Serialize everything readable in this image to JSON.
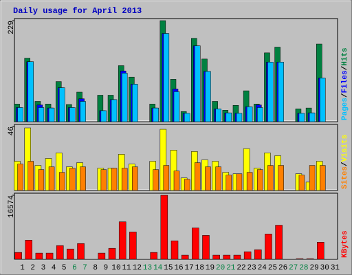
{
  "chart_data": [
    {
      "type": "bar",
      "title": "Daily usage for April 2013",
      "ylim": [
        0,
        229
      ],
      "yticks": [
        229
      ],
      "legend_separator": "/",
      "series": [
        {
          "name": "Hits",
          "color": "#008040",
          "values": [
            40,
            144,
            46,
            40,
            91,
            39,
            67,
            null,
            60,
            60,
            127,
            101,
            null,
            40,
            229,
            96,
            23,
            189,
            142,
            46,
            26,
            37,
            70,
            40,
            156,
            169,
            null,
            29,
            31,
            176,
            null
          ]
        },
        {
          "name": "Files",
          "color": "#0000ff",
          "values": [
            32,
            136,
            38,
            31,
            77,
            32,
            52,
            null,
            25,
            50,
            115,
            85,
            null,
            31,
            200,
            74,
            19,
            172,
            114,
            29,
            20,
            19,
            34,
            38,
            135,
            135,
            null,
            19,
            20,
            99,
            null
          ]
        },
        {
          "name": "Pages",
          "color": "#00c0ff",
          "values": [
            32,
            136,
            32,
            31,
            77,
            32,
            46,
            null,
            25,
            50,
            110,
            85,
            null,
            31,
            200,
            68,
            19,
            172,
            114,
            29,
            20,
            19,
            34,
            32,
            135,
            135,
            null,
            19,
            20,
            99,
            null
          ]
        }
      ]
    },
    {
      "type": "bar",
      "ylim": [
        0,
        46
      ],
      "yticks": [
        46
      ],
      "legend_separator": "/",
      "series": [
        {
          "name": "Visits",
          "color": "#ffff00",
          "values": [
            21,
            45,
            18,
            23,
            27,
            17,
            20,
            null,
            16,
            16,
            26,
            19,
            null,
            21,
            44,
            29,
            9,
            28,
            22,
            21,
            13,
            12,
            30,
            16,
            27,
            25,
            null,
            12,
            6,
            21,
            null
          ]
        },
        {
          "name": "Sites",
          "color": "#ff8000",
          "values": [
            19,
            21,
            15,
            17,
            13,
            16,
            17,
            null,
            15,
            16,
            16,
            17,
            null,
            15,
            18,
            14,
            8,
            20,
            17,
            17,
            11,
            12,
            13,
            15,
            18,
            18,
            null,
            11,
            18,
            18,
            null
          ]
        }
      ]
    },
    {
      "type": "bar",
      "ylim": [
        0,
        16574
      ],
      "yticks": [
        16574
      ],
      "categories": [
        "1",
        "2",
        "3",
        "4",
        "5",
        "6",
        "7",
        "8",
        "9",
        "10",
        "11",
        "12",
        "13",
        "14",
        "15",
        "16",
        "17",
        "18",
        "19",
        "20",
        "21",
        "22",
        "23",
        "24",
        "25",
        "26",
        "27",
        "28",
        "29",
        "30",
        "31"
      ],
      "weekend_categories": [
        "6",
        "7",
        "13",
        "14",
        "20",
        "21",
        "27",
        "28"
      ],
      "weekday_label_color": "#000000",
      "weekend_label_color": "#008040",
      "series": [
        {
          "name": "KBytes",
          "color": "#ff0000",
          "values": [
            1763,
            4936,
            1587,
            1587,
            3526,
            2645,
            4055,
            null,
            1587,
            2821,
            9697,
            7052,
            null,
            1763,
            16574,
            4760,
            1058,
            8110,
            6171,
            1058,
            1058,
            1058,
            1939,
            2468,
            6523,
            8815,
            null,
            150,
            150,
            4408,
            null
          ]
        }
      ]
    }
  ]
}
